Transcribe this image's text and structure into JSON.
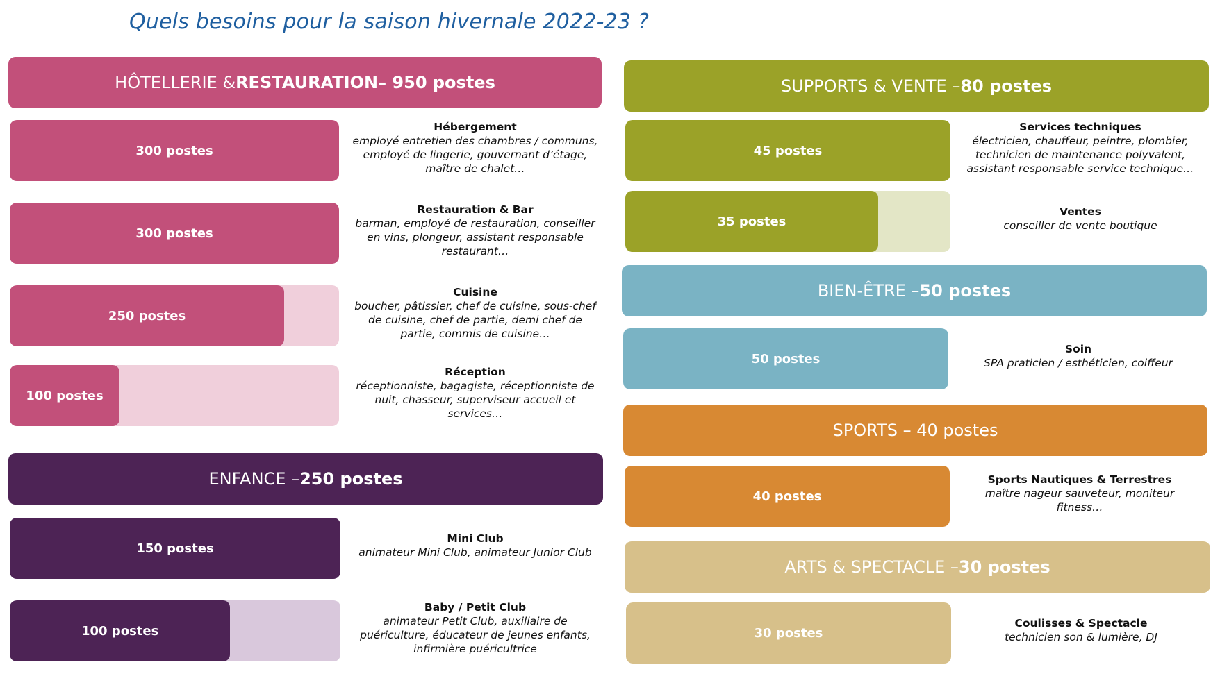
{
  "title": "Quels besoins pour la saison hivernale 2022-23 ?",
  "sections": [
    {
      "header_prefix": "HÔTELLERIE & ",
      "header_main": "RESTAURATION",
      "header_suffix": " – 950 postes",
      "color": "#c2507a",
      "track_color": "#f0cfdb",
      "rows": [
        {
          "count_label": "300 postes",
          "value": 300,
          "title": "Hébergement",
          "desc": "employé entretien des chambres / communs, employé de lingerie, gouvernant d’étage, maître de chalet…"
        },
        {
          "count_label": "300 postes",
          "value": 300,
          "title": "Restauration & Bar",
          "desc": "barman, employé de restauration, conseiller en vins, plongeur, assistant responsable restaurant…"
        },
        {
          "count_label": "250 postes",
          "value": 250,
          "title": "Cuisine",
          "desc": "boucher, pâtissier, chef de cuisine, sous-chef de cuisine, chef de partie, demi chef de partie, commis de cuisine…"
        },
        {
          "count_label": "100 postes",
          "value": 100,
          "title": "Réception",
          "desc": "réceptionniste, bagagiste, réceptionniste de nuit, chasseur, superviseur accueil et services…"
        }
      ]
    },
    {
      "header_prefix": "ENFANCE – ",
      "header_main": "250 postes",
      "header_suffix": "",
      "color": "#4d2355",
      "track_color": "#d9c8dc",
      "rows": [
        {
          "count_label": "150 postes",
          "value": 150,
          "title": "Mini Club",
          "desc": "animateur Mini Club, animateur Junior Club"
        },
        {
          "count_label": "100 postes",
          "value": 100,
          "title": "Baby / Petit Club",
          "desc": "animateur Petit Club, auxiliaire de puériculture, éducateur de jeunes enfants, infirmière puéricultrice"
        }
      ]
    },
    {
      "header_prefix": "SUPPORTS & VENTE – ",
      "header_main": "80 postes",
      "header_suffix": "",
      "color": "#9ba228",
      "track_color": "#e3e6c6",
      "rows": [
        {
          "count_label": "45 postes",
          "value": 45,
          "title": "Services techniques",
          "desc": "électricien, chauffeur, peintre, plombier, technicien de maintenance polyvalent, assistant responsable service technique…"
        },
        {
          "count_label": "35 postes",
          "value": 35,
          "title": "Ventes",
          "desc": "conseiller de vente boutique"
        }
      ]
    },
    {
      "header_prefix": "BIEN-ÊTRE – ",
      "header_main": "50 postes",
      "header_suffix": "",
      "color": "#7ab3c4",
      "track_color": "#d5e8ee",
      "rows": [
        {
          "count_label": "50 postes",
          "value": 50,
          "title": "Soin",
          "desc": "SPA praticien / esthéticien, coiffeur"
        }
      ]
    },
    {
      "header_prefix": "SPORTS – 40 postes",
      "header_main": "",
      "header_suffix": "",
      "color": "#d88933",
      "track_color": "#f3dcc1",
      "rows": [
        {
          "count_label": "40 postes",
          "value": 40,
          "title": "Sports Nautiques & Terrestres",
          "desc": "maître nageur sauveteur, moniteur fitness…"
        }
      ]
    },
    {
      "header_prefix": "ARTS & SPECTACLE – ",
      "header_main": "30 postes",
      "header_suffix": "",
      "color": "#d7c08a",
      "track_color": "#f1e9d4",
      "rows": [
        {
          "count_label": "30 postes",
          "value": 30,
          "title": "Coulisses & Spectacle",
          "desc": "technicien son & lumière, DJ"
        }
      ]
    }
  ]
}
